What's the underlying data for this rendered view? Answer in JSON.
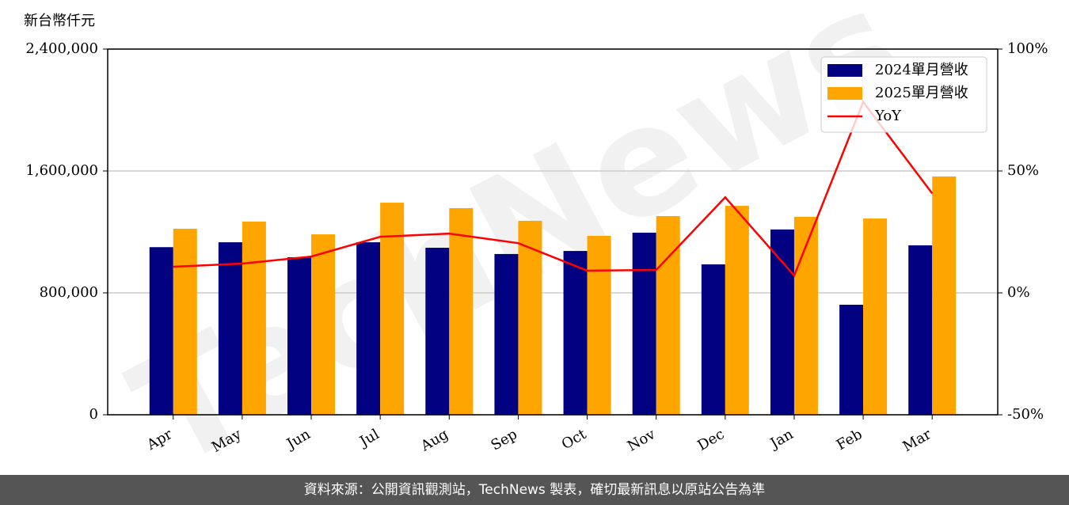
{
  "chart_data": {
    "type": "bar_line",
    "y_label": "新台幣仟元",
    "watermark": "TechNews",
    "categories": [
      "Apr",
      "May",
      "Jun",
      "Jul",
      "Aug",
      "Sep",
      "Oct",
      "Nov",
      "Dec",
      "Jan",
      "Feb",
      "Mar"
    ],
    "series": [
      {
        "name": "2024單月營收",
        "color": "#000080",
        "values": [
          1100000,
          1132000,
          1034000,
          1132000,
          1096000,
          1055000,
          1075000,
          1195000,
          987000,
          1216000,
          722000,
          1112000
        ]
      },
      {
        "name": "2025單月營收",
        "color": "#ffa500",
        "values": [
          1221000,
          1268000,
          1184000,
          1392000,
          1356000,
          1273000,
          1174000,
          1304000,
          1371000,
          1299000,
          1288000,
          1564000
        ]
      },
      {
        "name": "YoY",
        "color": "#ff0000",
        "axis": "y2",
        "values": [
          10.7,
          12,
          14.9,
          23,
          24.3,
          20.4,
          9.1,
          9.4,
          39.2,
          7.1,
          78.3,
          40.8
        ]
      }
    ],
    "ylim": [
      0,
      2400000
    ],
    "yticks": [
      0,
      {
        "value": 800000,
        "label": "800,000"
      },
      {
        "value": 1600000,
        "label": "1,600,000"
      },
      {
        "value": 2400000,
        "label": "2,400,000"
      }
    ],
    "y2lim": [
      -50,
      100
    ],
    "y2ticks": [
      {
        "value": -50,
        "label": "-50%"
      },
      {
        "value": 0,
        "label": "0%"
      },
      {
        "value": 50,
        "label": "50%"
      },
      {
        "value": 100,
        "label": "100%"
      }
    ],
    "grid": true,
    "legend": "upper right",
    "footer": "資料來源：公開資訊觀測站，TechNews 製表，確切最新訊息以原站公告為準"
  }
}
